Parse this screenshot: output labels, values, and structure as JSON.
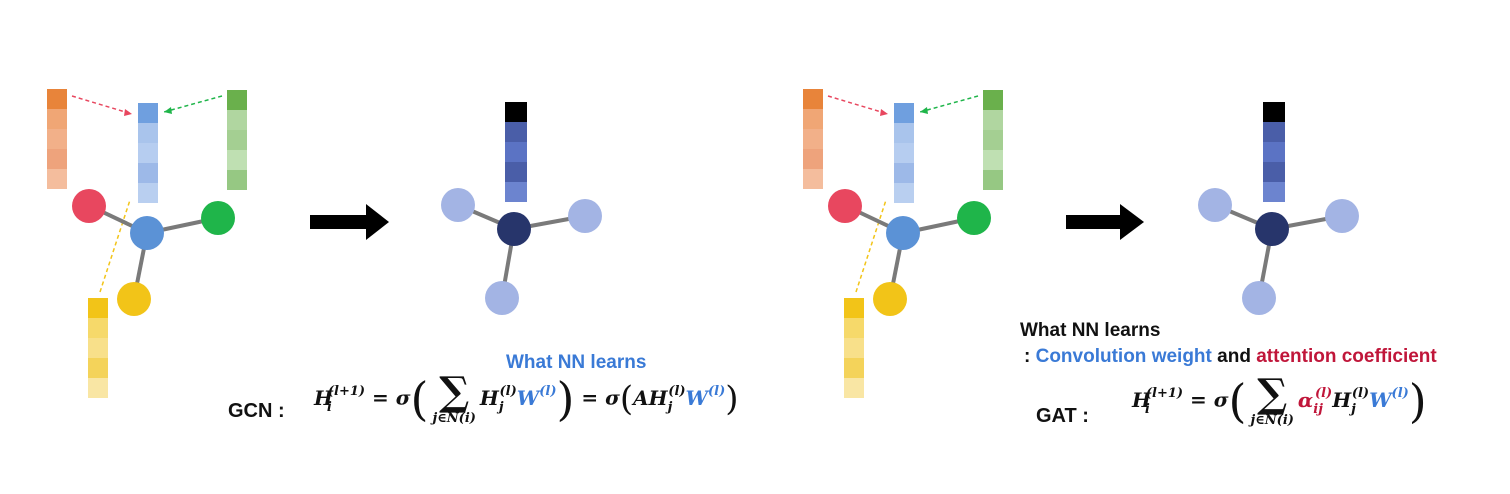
{
  "colors": {
    "orange": "#e8843a",
    "blue_light": "#7fa6e2",
    "green": "#6ab04c",
    "yellow": "#f2c418",
    "red_node": "#e8475f",
    "green_node": "#1fb54a",
    "center_blue": "#5b92d6",
    "dark_navy": "#27356b",
    "faint_blue": "#a3b4e4",
    "learn_blue": "#3a7ad6",
    "attn_red": "#c0163a"
  },
  "gcn": {
    "learn_label": "What NN learns",
    "name": "GCN :"
  },
  "gat": {
    "learn_title": "What NN learns",
    "learn_prefix": ": ",
    "conv_weight": "Convolution weight",
    "and_word": " and ",
    "attn_coef": "attention coefficient",
    "name": "GAT :"
  }
}
